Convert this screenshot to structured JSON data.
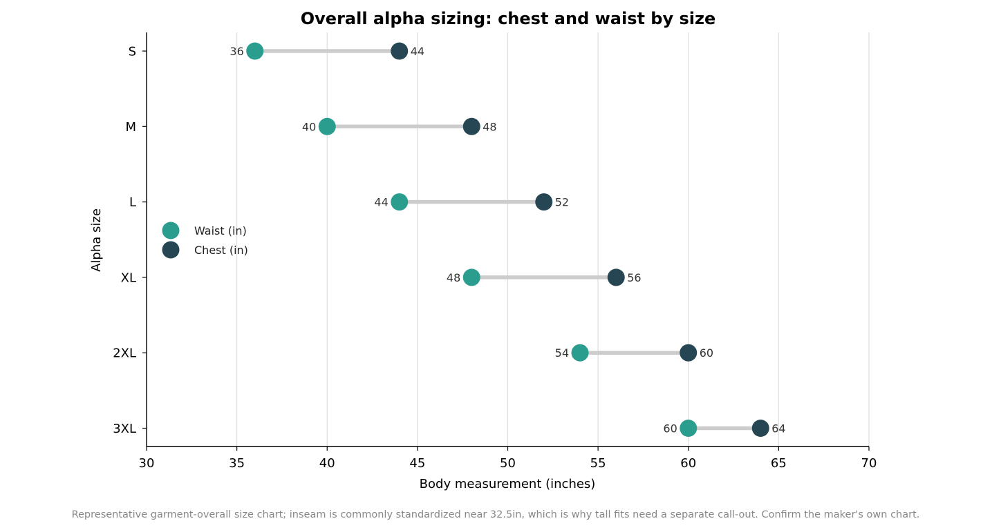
{
  "chart_data": {
    "type": "dumbbell",
    "title": "Overall alpha sizing: chest and waist by size",
    "xlabel": "Body measurement (inches)",
    "ylabel": "Alpha size",
    "xlim": [
      30,
      70
    ],
    "xticks": [
      "30",
      "35",
      "40",
      "45",
      "50",
      "55",
      "60",
      "65",
      "70"
    ],
    "grid": "vertical",
    "legend_position": "left",
    "categories": [
      "S",
      "M",
      "L",
      "XL",
      "2XL",
      "3XL"
    ],
    "series": [
      {
        "name": "Waist (in)",
        "color": "#2a9d8f",
        "values": [
          36,
          40,
          44,
          48,
          54,
          60
        ],
        "labels": [
          "36",
          "40",
          "44",
          "48",
          "54",
          "60"
        ]
      },
      {
        "name": "Chest (in)",
        "color": "#264653",
        "values": [
          44,
          48,
          52,
          56,
          60,
          64
        ],
        "labels": [
          "44",
          "48",
          "52",
          "56",
          "60",
          "64"
        ]
      }
    ],
    "connector_color": "#cccccc"
  },
  "footnote": "Representative garment-overall size chart; inseam is commonly standardized near 32.5in, which is why tall fits need a separate call-out. Confirm the maker's own chart."
}
